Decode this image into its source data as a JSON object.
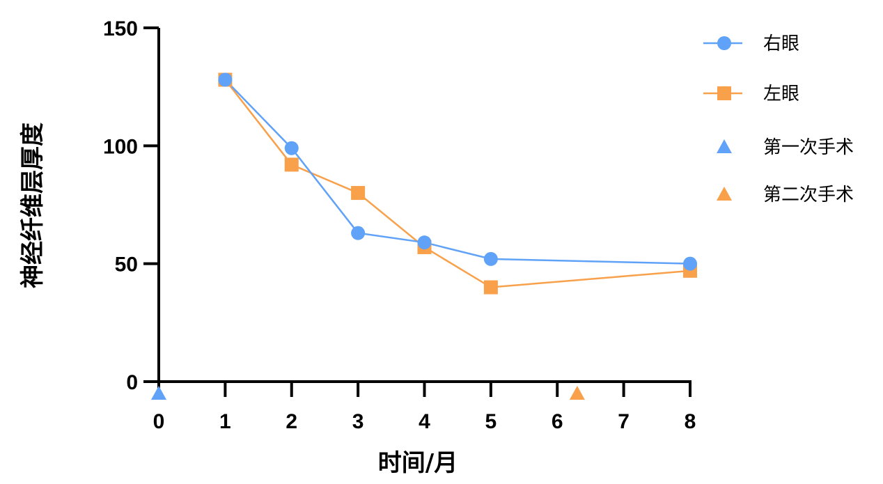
{
  "chart_data": {
    "type": "line",
    "title": "",
    "xlabel": "时间/月",
    "ylabel": "神经纤维层厚度",
    "x_ticks": [
      "0",
      "1",
      "2",
      "3",
      "4",
      "5",
      "6",
      "7",
      "8"
    ],
    "y_ticks": [
      "0",
      "50",
      "100",
      "150"
    ],
    "xlim": [
      0,
      8
    ],
    "ylim": [
      0,
      150
    ],
    "grid": false,
    "legend_position": "right-top",
    "x": [
      1,
      2,
      3,
      4,
      5,
      8
    ],
    "series": [
      {
        "name": "右眼",
        "marker": "circle",
        "color": "#5fa2f8",
        "values": [
          128,
          99,
          63,
          59,
          52,
          50
        ]
      },
      {
        "name": "左眼",
        "marker": "square",
        "color": "#f8a04a",
        "values": [
          128,
          92,
          80,
          57,
          40,
          47
        ]
      }
    ],
    "annotations": [
      {
        "name": "第一次手术",
        "marker": "triangle",
        "color": "#5fa2f8",
        "x": 0
      },
      {
        "name": "第二次手术",
        "marker": "triangle",
        "color": "#f8a04a",
        "x": 6.3
      }
    ]
  },
  "legend": {
    "items": [
      {
        "label": "右眼"
      },
      {
        "label": "左眼"
      },
      {
        "label": "第一次手术"
      },
      {
        "label": "第二次手术"
      }
    ]
  },
  "axes": {
    "x_title": "时间/月",
    "y_title": "神经纤维层厚度"
  }
}
